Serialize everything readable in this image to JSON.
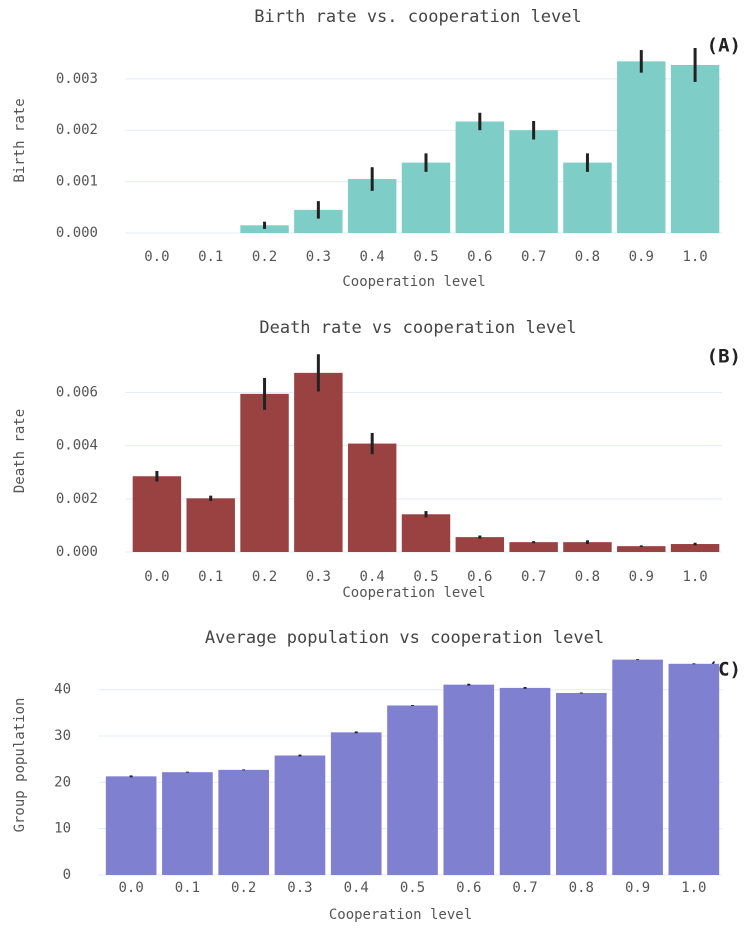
{
  "chart_data": [
    {
      "type": "bar",
      "title": "Birth rate vs. cooperation level",
      "annotation": "(A)",
      "x_label": "Cooperation level",
      "y_label": "Birth rate",
      "categories": [
        "0.0",
        "0.1",
        "0.2",
        "0.3",
        "0.4",
        "0.5",
        "0.6",
        "0.7",
        "0.8",
        "0.9",
        "1.0"
      ],
      "values": [
        0,
        0,
        0.00015,
        0.00045,
        0.00105,
        0.00137,
        0.00217,
        0.002,
        0.00137,
        0.00334,
        0.00327
      ],
      "errors": [
        0,
        0,
        7e-05,
        0.00017,
        0.00023,
        0.00018,
        0.00017,
        0.00018,
        0.00018,
        0.00022,
        0.00033
      ],
      "color": "#7ecec7",
      "ylim": [
        0,
        0.0036
      ],
      "yticks": [
        {
          "value": 0,
          "label": "0.000"
        },
        0.001,
        0.002,
        0.003
      ],
      "grid": true
    },
    {
      "type": "bar",
      "title": "Death rate vs cooperation level",
      "annotation": "(B)",
      "x_label": "Cooperation level",
      "y_label": "Death rate",
      "categories": [
        "0.0",
        "0.1",
        "0.2",
        "0.3",
        "0.4",
        "0.5",
        "0.6",
        "0.7",
        "0.8",
        "0.9",
        "1.0"
      ],
      "values": [
        0.00285,
        0.00202,
        0.00595,
        0.00674,
        0.00408,
        0.00142,
        0.00056,
        0.00037,
        0.00037,
        0.00022,
        0.0003
      ],
      "errors": [
        0.0002,
        0.0001,
        0.0006,
        0.0007,
        0.0004,
        0.00012,
        6e-05,
        4e-05,
        7e-05,
        3e-05,
        5e-05
      ],
      "color": "#9a4141",
      "ylim": [
        0,
        0.0076
      ],
      "yticks": [
        {
          "value": 0,
          "label": "0.000"
        },
        0.002,
        0.004,
        0.006
      ],
      "grid": true
    },
    {
      "type": "bar",
      "title": "Average population vs cooperation level",
      "annotation": "(C)",
      "x_label": "Cooperation level",
      "y_label": "Group population",
      "categories": [
        "0.0",
        "0.1",
        "0.2",
        "0.3",
        "0.4",
        "0.5",
        "0.6",
        "0.7",
        "0.8",
        "0.9",
        "1.0"
      ],
      "values": [
        21.3,
        22.2,
        22.7,
        25.8,
        30.8,
        36.6,
        41.1,
        40.4,
        39.3,
        46.5,
        45.6
      ],
      "errors": [
        0.2,
        0.1,
        0.1,
        0.2,
        0.2,
        0.1,
        0.2,
        0.2,
        0.1,
        0.1,
        0.1
      ],
      "color": "#8080d0",
      "ylim": [
        0,
        47.5
      ],
      "yticks": [
        0,
        10,
        20,
        30,
        40
      ],
      "grid": true
    }
  ]
}
